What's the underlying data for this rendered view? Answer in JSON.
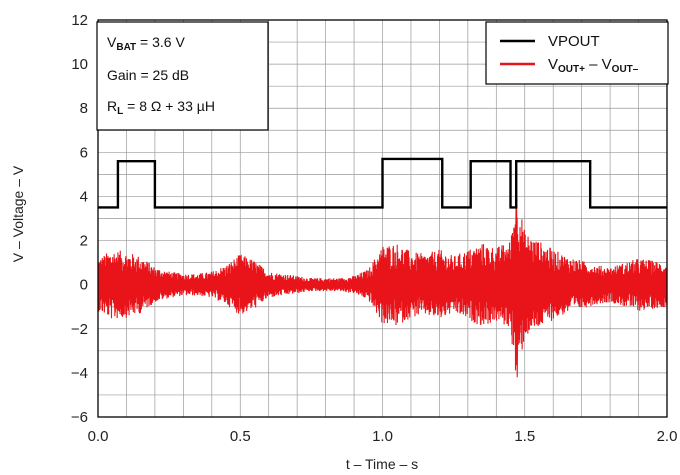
{
  "chart_data": {
    "type": "line",
    "xlabel": "t – Time – s",
    "ylabel": "V – Voltage – V",
    "xlim": [
      0.0,
      2.0
    ],
    "ylim": [
      -6,
      12
    ],
    "x_ticks": [
      "0.0",
      "0.5",
      "1.0",
      "1.5",
      "2.0"
    ],
    "y_ticks": [
      "12",
      "10",
      "8",
      "6",
      "4",
      "2",
      "0",
      "−2",
      "−4",
      "−6"
    ],
    "grid": true,
    "annotations": {
      "vbat": "V",
      "vbat_sub": "BAT",
      "vbat_value": " = 3.6 V",
      "gain": "Gain = 25 dB",
      "rl": "R",
      "rl_sub": "L",
      "rl_value": " = 8 Ω + 33 µH"
    },
    "legend": {
      "placement": "top-right",
      "vpout": "VPOUT",
      "vout_a": "V",
      "vout_a_sub": "OUT+",
      "vout_sep": " – ",
      "vout_b": "V",
      "vout_b_sub": "OUT–"
    },
    "series": [
      {
        "name": "VPOUT",
        "color": "#000000",
        "x": [
          0.0,
          0.07,
          0.07,
          0.2,
          0.2,
          1.0,
          1.0,
          1.21,
          1.21,
          1.31,
          1.31,
          1.45,
          1.45,
          1.47,
          1.47,
          1.73,
          1.73,
          2.0
        ],
        "y": [
          3.5,
          3.5,
          5.6,
          5.6,
          3.5,
          3.5,
          5.7,
          5.7,
          3.5,
          3.5,
          5.6,
          5.6,
          3.5,
          3.5,
          5.6,
          5.6,
          3.5,
          3.5
        ]
      },
      {
        "name": "VOUT+ – VOUT–",
        "color": "#e8141a",
        "envelope_x": [
          0.0,
          0.05,
          0.1,
          0.15,
          0.2,
          0.25,
          0.3,
          0.35,
          0.4,
          0.45,
          0.5,
          0.55,
          0.6,
          0.65,
          0.7,
          0.75,
          0.8,
          0.85,
          0.9,
          0.95,
          1.0,
          1.05,
          1.1,
          1.15,
          1.2,
          1.25,
          1.3,
          1.35,
          1.4,
          1.45,
          1.47,
          1.5,
          1.55,
          1.6,
          1.65,
          1.7,
          1.75,
          1.8,
          1.85,
          1.9,
          1.95,
          2.0
        ],
        "envelope": [
          1.2,
          1.6,
          1.5,
          1.3,
          0.8,
          0.6,
          0.5,
          0.5,
          0.6,
          0.9,
          1.4,
          1.1,
          0.6,
          0.5,
          0.4,
          0.3,
          0.3,
          0.3,
          0.4,
          0.7,
          1.8,
          1.9,
          1.5,
          1.4,
          1.6,
          1.3,
          1.6,
          1.9,
          1.7,
          2.0,
          4.5,
          2.4,
          2.0,
          1.6,
          1.3,
          1.1,
          0.9,
          0.8,
          1.0,
          1.2,
          1.1,
          1.0
        ],
        "spike": {
          "x": 1.47,
          "max": 4.3,
          "min": -4.2
        }
      }
    ]
  }
}
